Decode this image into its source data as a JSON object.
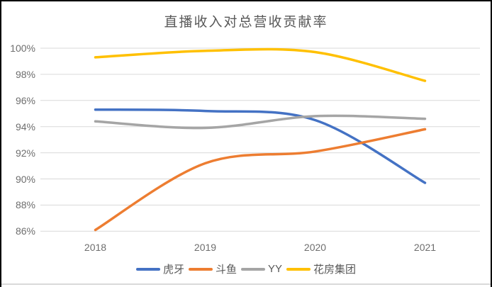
{
  "chart_data": {
    "type": "line",
    "title": "直播收入对总营收贡献率",
    "title_color": "#595959",
    "categories": [
      "2018",
      "2019",
      "2020",
      "2021"
    ],
    "series": [
      {
        "name": "虎牙",
        "color": "#4472C4",
        "values": [
          95.3,
          95.2,
          94.5,
          89.7
        ]
      },
      {
        "name": "斗鱼",
        "color": "#ED7D31",
        "values": [
          86.1,
          91.2,
          92.1,
          93.8
        ]
      },
      {
        "name": "YY",
        "color": "#A5A5A5",
        "values": [
          94.4,
          93.9,
          94.8,
          94.6
        ]
      },
      {
        "name": "花房集团",
        "color": "#FFC000",
        "values": [
          99.3,
          99.8,
          99.7,
          97.5
        ]
      }
    ],
    "ylim": [
      86,
      100
    ],
    "y_tick_step": 2,
    "y_ticks": [
      "100%",
      "98%",
      "96%",
      "94%",
      "92%",
      "90%",
      "88%",
      "86%"
    ],
    "xlabel": "",
    "ylabel": "",
    "grid": true,
    "gridline_color": "#d9d9d9",
    "legend_position": "bottom",
    "smooth": true,
    "line_width": 3.5
  }
}
